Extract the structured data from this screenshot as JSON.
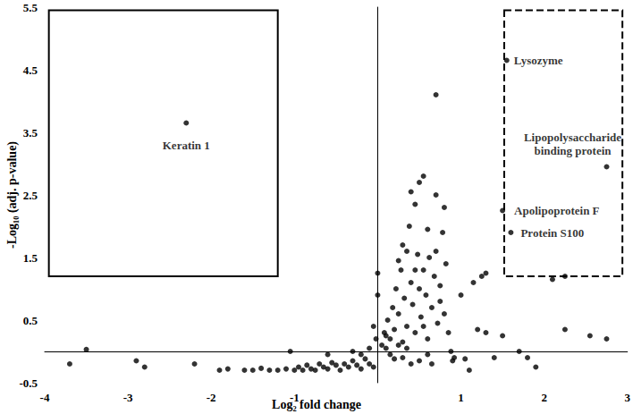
{
  "chart_data": {
    "type": "scatter",
    "x_label": "Log₂ fold change",
    "y_label": "-Log₁₀ (adj. p-value)",
    "color": "#000000",
    "marker": "circle",
    "grid": false,
    "xlim": [
      -4,
      3
    ],
    "xticks": [
      -4,
      -3,
      -2,
      -1,
      1,
      2,
      3
    ],
    "ylim": [
      -0.5,
      5.5
    ],
    "yticks": [
      -0.5,
      0.5,
      1.5,
      2.5,
      3.5,
      4.5,
      5.5
    ],
    "labeled_points": [
      {
        "label": "Keratin 1",
        "x": -2.3,
        "y": 3.65
      },
      {
        "label": "Lysozyme",
        "x": 1.55,
        "y": 4.65
      },
      {
        "label": "Lipopolysaccharide\nbinding protein",
        "x": 2.75,
        "y": 2.95
      },
      {
        "label": "Apolipoprotein F",
        "x": 1.5,
        "y": 2.25
      },
      {
        "label": "Protein S100",
        "x": 1.6,
        "y": 1.9
      }
    ],
    "boxes": [
      {
        "xlim": [
          -3.95,
          -1.2
        ],
        "ylim": [
          1.2,
          5.45
        ],
        "line_style": "solid"
      },
      {
        "xlim": [
          1.52,
          2.94
        ],
        "ylim": [
          1.2,
          5.45
        ],
        "line_style": "dashed"
      }
    ],
    "points": [
      [
        -3.7,
        -0.2
      ],
      [
        -3.5,
        0.03
      ],
      [
        -2.9,
        -0.15
      ],
      [
        -2.8,
        -0.25
      ],
      [
        -2.2,
        -0.2
      ],
      [
        -1.9,
        -0.3
      ],
      [
        -1.8,
        -0.28
      ],
      [
        -1.6,
        -0.3
      ],
      [
        -1.5,
        -0.3
      ],
      [
        -1.4,
        -0.27
      ],
      [
        -1.3,
        -0.3
      ],
      [
        -1.2,
        -0.3
      ],
      [
        -1.1,
        -0.28
      ],
      [
        -1.0,
        -0.3
      ],
      [
        -0.95,
        -0.25
      ],
      [
        -0.9,
        -0.3
      ],
      [
        -0.85,
        -0.22
      ],
      [
        -0.8,
        -0.28
      ],
      [
        -0.75,
        -0.3
      ],
      [
        -0.7,
        -0.2
      ],
      [
        -0.65,
        -0.25
      ],
      [
        -0.6,
        -0.28
      ],
      [
        -0.55,
        -0.18
      ],
      [
        -0.5,
        -0.22
      ],
      [
        -0.45,
        -0.3
      ],
      [
        -0.4,
        -0.2
      ],
      [
        -0.35,
        -0.25
      ],
      [
        -0.3,
        -0.15
      ],
      [
        -0.25,
        -0.22
      ],
      [
        -0.2,
        -0.28
      ],
      [
        -0.15,
        -0.12
      ],
      [
        -0.1,
        -0.2
      ],
      [
        -0.05,
        -0.25
      ],
      [
        -1.05,
        0.0
      ],
      [
        -0.6,
        -0.05
      ],
      [
        -0.3,
        0.0
      ],
      [
        -0.2,
        -0.05
      ],
      [
        -0.1,
        0.05
      ],
      [
        0,
        1.25
      ],
      [
        0,
        0.9
      ],
      [
        -0.05,
        0.4
      ],
      [
        -0.02,
        0.2
      ],
      [
        0.05,
        0.1
      ],
      [
        0.08,
        0.3
      ],
      [
        0.1,
        0.05
      ],
      [
        0.12,
        0.5
      ],
      [
        0.15,
        0.2
      ],
      [
        0.18,
        0.7
      ],
      [
        0.2,
        0.35
      ],
      [
        0.22,
        1.0
      ],
      [
        0.25,
        0.6
      ],
      [
        0.28,
        1.3
      ],
      [
        0.3,
        0.15
      ],
      [
        0.32,
        0.85
      ],
      [
        0.35,
        1.6
      ],
      [
        0.35,
        0.4
      ],
      [
        0.38,
        2.0
      ],
      [
        0.4,
        2.55
      ],
      [
        0.4,
        1.1
      ],
      [
        0.42,
        0.75
      ],
      [
        0.45,
        2.35
      ],
      [
        0.45,
        0.3
      ],
      [
        0.48,
        1.55
      ],
      [
        0.5,
        2.7
      ],
      [
        0.5,
        1.0
      ],
      [
        0.52,
        0.55
      ],
      [
        0.55,
        2.8
      ],
      [
        0.55,
        1.3
      ],
      [
        0.58,
        0.9
      ],
      [
        0.6,
        1.95
      ],
      [
        0.6,
        0.2
      ],
      [
        0.62,
        1.5
      ],
      [
        0.65,
        0.7
      ],
      [
        0.68,
        1.2
      ],
      [
        0.7,
        4.1
      ],
      [
        0.7,
        2.5
      ],
      [
        0.72,
        0.45
      ],
      [
        0.75,
        1.05
      ],
      [
        0.78,
        1.9
      ],
      [
        0.8,
        2.3
      ],
      [
        0.8,
        0.6
      ],
      [
        0.82,
        1.4
      ],
      [
        0.85,
        0.3
      ],
      [
        0.88,
        0.0
      ],
      [
        0.9,
        -0.15
      ],
      [
        0.92,
        -0.1
      ],
      [
        1.0,
        0.9
      ],
      [
        1.05,
        -0.12
      ],
      [
        1.1,
        -0.3
      ],
      [
        1.15,
        1.1
      ],
      [
        1.2,
        0.35
      ],
      [
        1.25,
        1.2
      ],
      [
        1.3,
        1.25
      ],
      [
        1.3,
        0.3
      ],
      [
        1.4,
        -0.1
      ],
      [
        1.5,
        0.25
      ],
      [
        0.3,
        -0.1
      ],
      [
        0.4,
        -0.2
      ],
      [
        0.5,
        -0.15
      ],
      [
        0.6,
        -0.05
      ],
      [
        0.65,
        -0.2
      ],
      [
        0.15,
        -0.05
      ],
      [
        0.25,
        0.1
      ],
      [
        0.35,
        0.05
      ],
      [
        0.2,
        -0.12
      ],
      [
        0.1,
        0.25
      ],
      [
        0.45,
        1.3
      ],
      [
        0.55,
        0.4
      ],
      [
        0.7,
        1.6
      ],
      [
        0.75,
        0.8
      ],
      [
        0.3,
        1.7
      ],
      [
        0.25,
        1.45
      ],
      [
        2.1,
        1.15
      ],
      [
        2.25,
        1.2
      ],
      [
        2.25,
        0.35
      ],
      [
        2.55,
        0.25
      ],
      [
        2.75,
        0.2
      ],
      [
        1.7,
        0.0
      ],
      [
        1.8,
        -0.1
      ],
      [
        1.9,
        -0.25
      ]
    ]
  }
}
